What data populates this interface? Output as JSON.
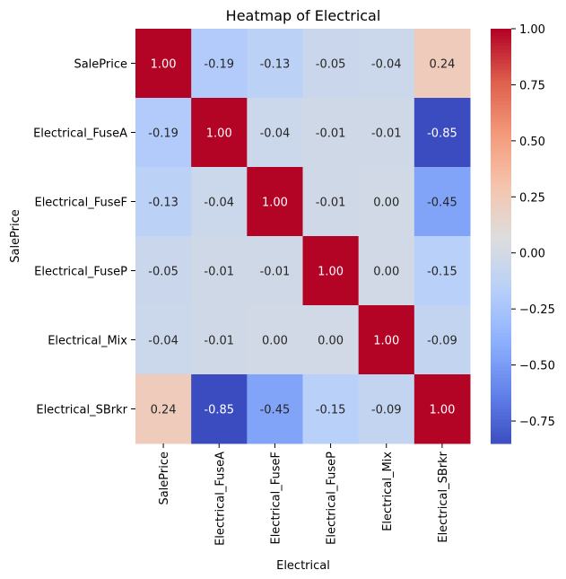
{
  "chart_data": {
    "type": "heatmap",
    "title": "Heatmap of Electrical",
    "xlabel": "Electrical",
    "ylabel": "SalePrice",
    "rows": [
      "SalePrice",
      "Electrical_FuseA",
      "Electrical_FuseF",
      "Electrical_FuseP",
      "Electrical_Mix",
      "Electrical_SBrkr"
    ],
    "columns": [
      "SalePrice",
      "Electrical_FuseA",
      "Electrical_FuseF",
      "Electrical_FuseP",
      "Electrical_Mix",
      "Electrical_SBrkr"
    ],
    "values": [
      [
        1.0,
        -0.19,
        -0.13,
        -0.05,
        -0.04,
        0.24
      ],
      [
        -0.19,
        1.0,
        -0.04,
        -0.01,
        -0.01,
        -0.85
      ],
      [
        -0.13,
        -0.04,
        1.0,
        -0.01,
        -0.0,
        -0.45
      ],
      [
        -0.05,
        -0.01,
        -0.01,
        1.0,
        -0.0,
        -0.15
      ],
      [
        -0.04,
        -0.01,
        -0.0,
        -0.0,
        1.0,
        -0.09
      ],
      [
        0.24,
        -0.85,
        -0.45,
        -0.15,
        -0.09,
        1.0
      ]
    ],
    "value_format": "0.00",
    "colormap": "coolwarm",
    "colorbar": {
      "min": -0.85,
      "max": 1.0,
      "ticks": [
        1.0,
        0.75,
        0.5,
        0.25,
        0.0,
        -0.25,
        -0.5,
        -0.75
      ],
      "tick_labels": [
        "1.00",
        "0.75",
        "0.50",
        "0.25",
        "0.00",
        "−0.25",
        "−0.50",
        "−0.75"
      ]
    },
    "grid": false
  }
}
